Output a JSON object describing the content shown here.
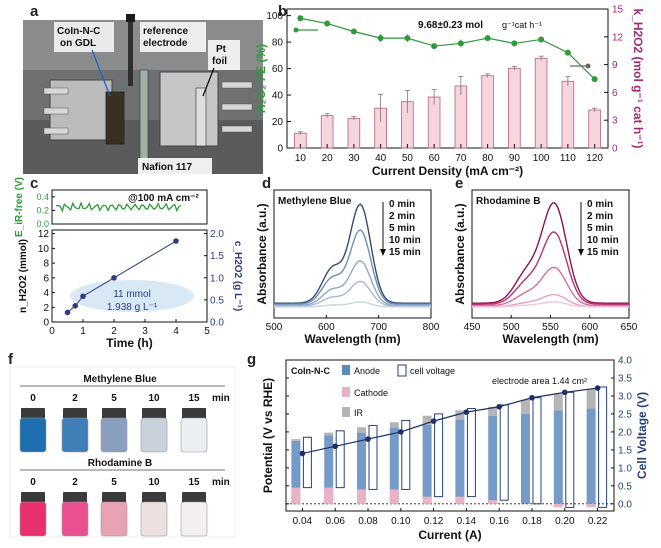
{
  "panel_letters": [
    "a",
    "b",
    "c",
    "d",
    "e",
    "f",
    "g"
  ],
  "photo_a": {
    "label_catalyst": "CoIn-N-C",
    "label_catalyst2": "on GDL",
    "label_ref": "reference",
    "label_ref2": "electrode",
    "label_pt": "Pt",
    "label_pt2": "foil",
    "label_membrane": "Nafion 117"
  },
  "photo_f": {
    "title_mb": "Methylene Blue",
    "title_rb": "Rhodamine B",
    "times": [
      "0",
      "2",
      "5",
      "10",
      "15"
    ],
    "unit": "min",
    "mb_colors": [
      "#1f6fb0",
      "#3f7fb8",
      "#8a9fc0",
      "#c9d1dc",
      "#eceff2"
    ],
    "rb_colors": [
      "#e8306c",
      "#ea4f90",
      "#e7a3b4",
      "#ede0e0",
      "#f2efee"
    ]
  },
  "colors": {
    "green": "#2e9a3a",
    "pink": "#a02a73",
    "bar_fill": "#f6d5dd",
    "bar_edge": "#b7617c",
    "navy": "#27407a",
    "c_navy": "#2c3e7f"
  },
  "chart_data": [
    {
      "panel": "b",
      "type": "bar+line",
      "xlabel": "Current Density (mA cm⁻²)",
      "ylabel_left": "H₂O₂ FE (%)",
      "ylabel_right": "k_H2O2 (mol g⁻¹ cat h⁻¹)",
      "annotation": "9.68±0.23 mol",
      "annotation_tail": "g⁻¹cat h⁻¹",
      "categories": [
        "10",
        "20",
        "30",
        "40",
        "50",
        "60",
        "70",
        "80",
        "90",
        "100",
        "110",
        "120"
      ],
      "yticks_left": [
        "0",
        "20",
        "40",
        "60",
        "80",
        "100"
      ],
      "yticks_right": [
        "0",
        "3",
        "6",
        "9",
        "12",
        "15"
      ],
      "ylim_left": [
        0,
        105
      ],
      "ylim_right": [
        0,
        15
      ],
      "fe_values": [
        98,
        94,
        88,
        83,
        83,
        77,
        79,
        83,
        79,
        82,
        72,
        52
      ],
      "fe_errors": [
        1,
        2,
        2,
        3,
        3,
        2,
        3,
        2,
        2,
        2,
        2,
        2
      ],
      "k_values": [
        1.6,
        3.5,
        3.2,
        4.3,
        5.0,
        5.5,
        6.7,
        7.8,
        8.6,
        9.68,
        7.2,
        4.1
      ],
      "k_errors": [
        0.15,
        0.2,
        0.2,
        1.5,
        1.2,
        0.8,
        1.0,
        0.2,
        0.2,
        0.23,
        0.5,
        0.2
      ]
    },
    {
      "panel": "c-top",
      "type": "line",
      "ylabel": "E_iR-free (V)",
      "annotation": "@100 mA cm⁻²",
      "yticks": [
        "0.0",
        "0.2",
        "0.4"
      ],
      "ylim": [
        0,
        0.5
      ],
      "xlim": [
        0,
        5
      ],
      "level": 0.25
    },
    {
      "panel": "c",
      "type": "scatter",
      "xlabel": "Time (h)",
      "ylabel_left": "n_H2O2 (mmol)",
      "ylabel_right": "c_H2O2 (g L⁻¹)",
      "x": [
        0.5,
        0.75,
        1.0,
        2.0,
        4.0
      ],
      "y": [
        1.3,
        2.2,
        3.5,
        6.0,
        11.0
      ],
      "xticks": [
        "0",
        "1",
        "2",
        "3",
        "4",
        "5"
      ],
      "yticks_left": [
        "0",
        "2",
        "4",
        "6",
        "8",
        "10",
        "12"
      ],
      "yticks_right": [
        "0.0",
        "0.5",
        "1.0",
        "1.5",
        "2.0"
      ],
      "xlim": [
        0,
        5
      ],
      "ylim_left": [
        0,
        12.5
      ],
      "ylim_right": [
        0,
        2.08
      ],
      "label1": "11 mmol",
      "label2": "1.938 g L⁻¹"
    },
    {
      "panel": "d",
      "type": "line",
      "title": "Methylene Blue",
      "xlabel": "Wavelength (nm)",
      "ylabel": "Absorbance (a.u.)",
      "xticks": [
        "500",
        "600",
        "700",
        "800"
      ],
      "xlim": [
        500,
        800
      ],
      "legend": [
        "0 min",
        "2 min",
        "5 min",
        "10 min",
        "15 min"
      ],
      "peaks": [
        1.0,
        0.75,
        0.45,
        0.25,
        0.05
      ],
      "colors": [
        "#2f4d74",
        "#6d8fb6",
        "#8ea8c8",
        "#a6b9d1",
        "#c9d3e0"
      ]
    },
    {
      "panel": "e",
      "type": "line",
      "title": "Rhodamine B",
      "xlabel": "Wavelength (nm)",
      "ylabel": "Absorbance (a.u.)",
      "xticks": [
        "450",
        "500",
        "550",
        "600",
        "650"
      ],
      "xlim": [
        450,
        650
      ],
      "legend": [
        "0 min",
        "2 min",
        "5 min",
        "10 min",
        "15 min"
      ],
      "peaks": [
        1.0,
        0.72,
        0.38,
        0.12,
        0.05
      ],
      "colors": [
        "#8b1350",
        "#b83273",
        "#d76ea0",
        "#e6a3c6",
        "#f0c8db"
      ]
    },
    {
      "panel": "g",
      "type": "stacked-bar+line",
      "xlabel": "Current (A)",
      "ylabel_left": "Potential (V vs RHE)",
      "ylabel_right": "Cell Voltage (V)",
      "title_label": "CoIn-N-C",
      "legend": [
        "Anode",
        "Cathode",
        "IR",
        "cell voltage"
      ],
      "annotation": "electrode area 1.44 cm²",
      "categories": [
        "0.04",
        "0.06",
        "0.08",
        "0.10",
        "0.12",
        "0.14",
        "0.16",
        "0.18",
        "0.20",
        "0.22"
      ],
      "yticks": [
        "0.0",
        "0.5",
        "1.0",
        "1.5",
        "2.0",
        "2.5",
        "3.0",
        "3.5",
        "4.0"
      ],
      "ylim": [
        -0.2,
        4.0
      ],
      "anode": [
        1.75,
        1.9,
        1.98,
        2.12,
        2.2,
        2.35,
        2.45,
        2.5,
        2.6,
        2.65
      ],
      "cathode": [
        0.45,
        0.45,
        0.4,
        0.4,
        0.2,
        0.2,
        0.1,
        0.0,
        -0.1,
        -0.1
      ],
      "ir": [
        0.05,
        0.08,
        0.15,
        0.15,
        0.25,
        0.25,
        0.25,
        0.4,
        0.45,
        0.55
      ],
      "cell_voltage": [
        1.4,
        1.6,
        1.8,
        2.0,
        2.3,
        2.55,
        2.7,
        2.95,
        3.1,
        3.22
      ]
    }
  ]
}
